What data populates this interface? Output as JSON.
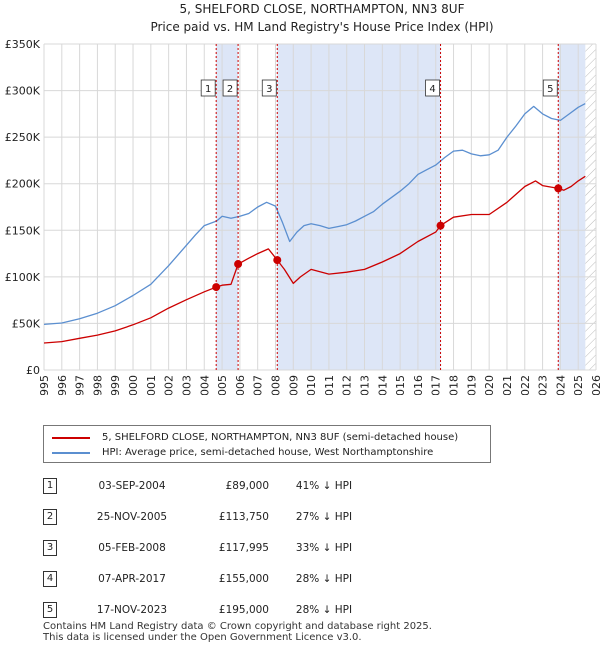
{
  "chart_data": {
    "type": "line",
    "title": "5, SHELFORD CLOSE, NORTHAMPTON, NN3 8UF",
    "subtitle": "Price paid vs. HM Land Registry's House Price Index (HPI)",
    "x_ticks": [
      "1995",
      "1996",
      "1997",
      "1998",
      "1999",
      "2000",
      "2001",
      "2002",
      "2003",
      "2004",
      "2005",
      "2006",
      "2007",
      "2008",
      "2009",
      "2010",
      "2011",
      "2012",
      "2013",
      "2014",
      "2015",
      "2016",
      "2017",
      "2018",
      "2019",
      "2020",
      "2021",
      "2022",
      "2023",
      "2024",
      "2025",
      "2026"
    ],
    "y_ticks": [
      "£0",
      "£50K",
      "£100K",
      "£150K",
      "£200K",
      "£250K",
      "£300K",
      "£350K"
    ],
    "xlim": [
      1995,
      2026
    ],
    "ylim": [
      0,
      350000
    ],
    "series": [
      {
        "name": "5, SHELFORD CLOSE, NORTHAMPTON, NN3 8UF (semi-detached house)",
        "color": "#cc0000",
        "x": [
          1995,
          1996,
          1997,
          1998,
          1999,
          2000,
          2001,
          2002,
          2003,
          2004,
          2004.67,
          2005.0,
          2005.5,
          2005.9,
          2006.5,
          2007,
          2007.6,
          2008.1,
          2008.5,
          2009.0,
          2009.4,
          2010,
          2011,
          2012,
          2013,
          2014,
          2015,
          2016,
          2017,
          2017.27,
          2018,
          2019,
          2020,
          2021,
          2022,
          2022.6,
          2023,
          2023.88,
          2024.2,
          2024.6,
          2025,
          2025.4
        ],
        "values": [
          29000,
          30500,
          34000,
          37500,
          42000,
          48500,
          56000,
          66500,
          75500,
          84000,
          89000,
          91000,
          92000,
          113750,
          120000,
          125000,
          130000,
          117995,
          108000,
          93000,
          100000,
          108000,
          103000,
          105000,
          108000,
          116000,
          125000,
          138000,
          148000,
          155000,
          164000,
          167000,
          167000,
          180000,
          197000,
          203000,
          198000,
          195000,
          193000,
          197000,
          203000,
          208000
        ]
      },
      {
        "name": "HPI: Average price, semi-detached house, West Northamptonshire",
        "color": "#5b8fd0",
        "x": [
          1995,
          1996,
          1997,
          1998,
          1999,
          2000,
          2001,
          2002,
          2003,
          2003.5,
          2004,
          2004.7,
          2005,
          2005.5,
          2006,
          2006.5,
          2007,
          2007.5,
          2008,
          2008.4,
          2008.8,
          2009.2,
          2009.6,
          2010,
          2010.5,
          2011,
          2011.5,
          2012,
          2012.5,
          2013,
          2013.5,
          2014,
          2014.5,
          2015,
          2015.5,
          2016,
          2016.5,
          2017,
          2017.5,
          2018,
          2018.5,
          2019,
          2019.5,
          2020,
          2020.5,
          2021,
          2021.5,
          2022,
          2022.5,
          2023,
          2023.5,
          2024,
          2024.5,
          2025,
          2025.4
        ],
        "values": [
          49000,
          50500,
          55000,
          61000,
          69000,
          80000,
          92000,
          112000,
          134000,
          145000,
          155000,
          160000,
          165000,
          163000,
          165000,
          168000,
          175000,
          180000,
          176000,
          158000,
          138000,
          148000,
          155000,
          157000,
          155000,
          152000,
          154000,
          156000,
          160000,
          165000,
          170000,
          178000,
          185000,
          192000,
          200000,
          210000,
          215000,
          220000,
          228000,
          235000,
          236000,
          232000,
          230000,
          231000,
          236000,
          250000,
          262000,
          275000,
          283000,
          275000,
          270000,
          268000,
          275000,
          282000,
          286000
        ]
      }
    ],
    "sales": [
      {
        "n": "1",
        "x": 2004.67,
        "value": 89000
      },
      {
        "n": "2",
        "x": 2005.9,
        "value": 113750
      },
      {
        "n": "3",
        "x": 2008.1,
        "value": 117995
      },
      {
        "n": "4",
        "x": 2017.27,
        "value": 155000
      },
      {
        "n": "5",
        "x": 2023.88,
        "value": 195000
      }
    ],
    "shaded_ranges": [
      [
        2004.67,
        2005.9
      ],
      [
        2008.1,
        2017.27
      ],
      [
        2023.88,
        2025.4
      ]
    ],
    "hatch_from": 2025.4
  },
  "legend": {
    "property_label": "5, SHELFORD CLOSE, NORTHAMPTON, NN3 8UF (semi-detached house)",
    "hpi_label": "HPI: Average price, semi-detached house, West Northamptonshire"
  },
  "table": [
    {
      "n": "1",
      "date": "03-SEP-2004",
      "price": "£89,000",
      "hpi": "41% ↓ HPI"
    },
    {
      "n": "2",
      "date": "25-NOV-2005",
      "price": "£113,750",
      "hpi": "27% ↓ HPI"
    },
    {
      "n": "3",
      "date": "05-FEB-2008",
      "price": "£117,995",
      "hpi": "33% ↓ HPI"
    },
    {
      "n": "4",
      "date": "07-APR-2017",
      "price": "£155,000",
      "hpi": "28% ↓ HPI"
    },
    {
      "n": "5",
      "date": "17-NOV-2023",
      "price": "£195,000",
      "hpi": "28% ↓ HPI"
    }
  ],
  "footer": {
    "line1": "Contains HM Land Registry data © Crown copyright and database right 2025.",
    "line2": "This data is licensed under the Open Government Licence v3.0."
  },
  "colors": {
    "property": "#cc0000",
    "hpi": "#5b8fd0",
    "shade": "#dde6f7",
    "grid": "#d8d8d8"
  }
}
